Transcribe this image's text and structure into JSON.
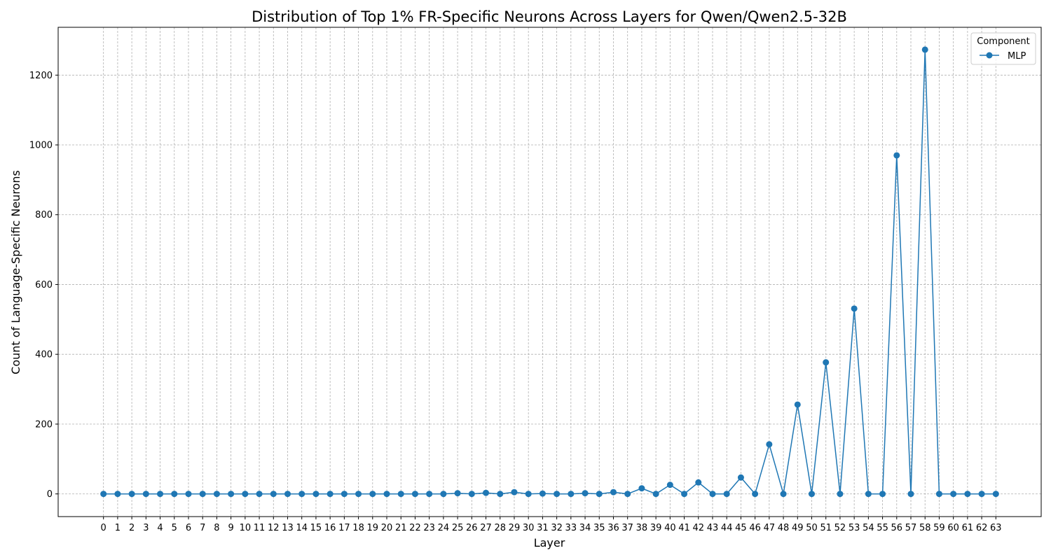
{
  "chart_data": {
    "type": "line",
    "title": "Distribution of Top 1% FR-Specific Neurons Across Layers for Qwen/Qwen2.5-32B",
    "xlabel": "Layer",
    "ylabel": "Count of Language-Specific Neurons",
    "x": [
      0,
      1,
      2,
      3,
      4,
      5,
      6,
      7,
      8,
      9,
      10,
      11,
      12,
      13,
      14,
      15,
      16,
      17,
      18,
      19,
      20,
      21,
      22,
      23,
      24,
      25,
      26,
      27,
      28,
      29,
      30,
      31,
      32,
      33,
      34,
      35,
      36,
      37,
      38,
      39,
      40,
      41,
      42,
      43,
      44,
      45,
      46,
      47,
      48,
      49,
      50,
      51,
      52,
      53,
      54,
      55,
      56,
      57,
      58,
      59,
      60,
      61,
      62,
      63
    ],
    "series": [
      {
        "name": "MLP",
        "color": "#1f77b4",
        "marker": "circle",
        "values": [
          0,
          0,
          0,
          0,
          0,
          0,
          0,
          0,
          0,
          0,
          0,
          0,
          0,
          0,
          0,
          0,
          0,
          0,
          0,
          0,
          0,
          0,
          0,
          0,
          0,
          2,
          0,
          3,
          0,
          5,
          0,
          1,
          0,
          0,
          2,
          0,
          5,
          0,
          16,
          0,
          26,
          0,
          33,
          0,
          0,
          47,
          0,
          142,
          0,
          256,
          0,
          377,
          0,
          531,
          0,
          0,
          970,
          0,
          1273,
          0,
          0,
          0,
          0,
          0
        ]
      }
    ],
    "ylim": [
      -65,
      1337
    ],
    "yticks": [
      0,
      200,
      400,
      600,
      800,
      1000,
      1200
    ],
    "xlim": [
      -3.2,
      66.2
    ],
    "grid": true,
    "legend": {
      "title": "Component",
      "placement": "upper right"
    }
  }
}
